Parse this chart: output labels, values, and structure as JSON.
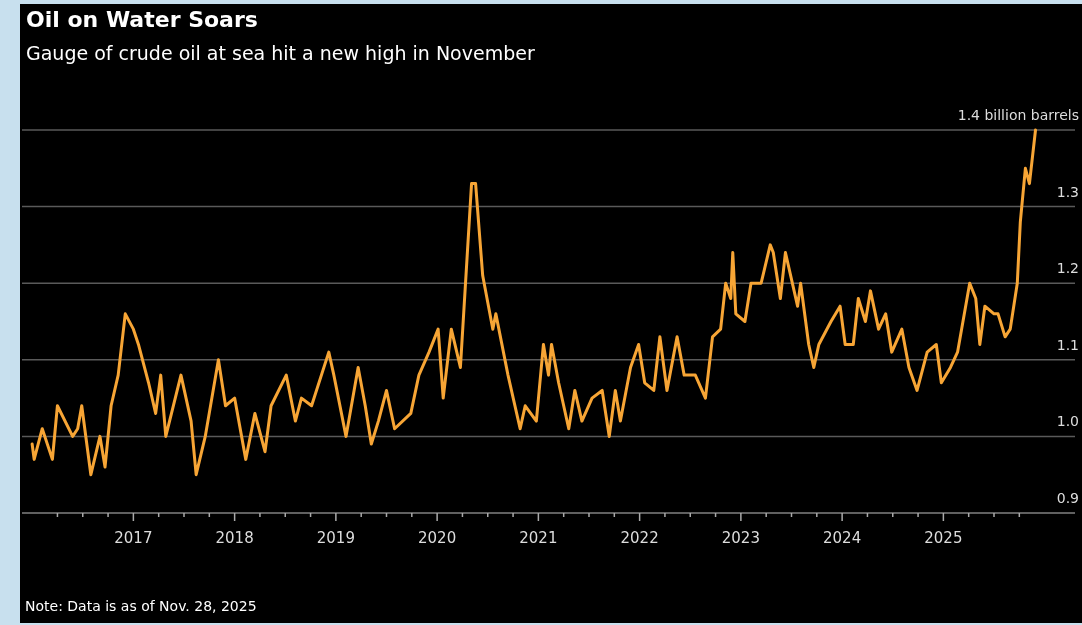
{
  "chart_data": {
    "type": "line",
    "title": "Oil on Water Soars",
    "subtitle": "Gauge of crude oil at sea hit a new high in November",
    "annotations": [
      "Note: Data is as of Nov. 28, 2025"
    ],
    "x": [
      2016.0,
      2016.02,
      2016.1,
      2016.2,
      2016.25,
      2016.4,
      2016.45,
      2016.49,
      2016.58,
      2016.67,
      2016.72,
      2016.78,
      2016.85,
      2016.92,
      2017.0,
      2017.05,
      2017.15,
      2017.22,
      2017.27,
      2017.32,
      2017.47,
      2017.57,
      2017.62,
      2017.71,
      2017.84,
      2017.91,
      2018.0,
      2018.11,
      2018.2,
      2018.3,
      2018.36,
      2018.51,
      2018.6,
      2018.66,
      2018.76,
      2018.93,
      2018.98,
      2019.1,
      2019.22,
      2019.29,
      2019.35,
      2019.42,
      2019.5,
      2019.58,
      2019.74,
      2019.82,
      2019.92,
      2020.01,
      2020.06,
      2020.14,
      2020.23,
      2020.34,
      2020.38,
      2020.45,
      2020.55,
      2020.58,
      2020.7,
      2020.82,
      2020.87,
      2020.98,
      2021.05,
      2021.1,
      2021.13,
      2021.2,
      2021.3,
      2021.36,
      2021.43,
      2021.53,
      2021.63,
      2021.7,
      2021.76,
      2021.81,
      2021.91,
      2021.99,
      2022.05,
      2022.14,
      2022.2,
      2022.27,
      2022.37,
      2022.44,
      2022.55,
      2022.65,
      2022.72,
      2022.8,
      2022.85,
      2022.9,
      2022.92,
      2022.95,
      2023.04,
      2023.1,
      2023.2,
      2023.29,
      2023.32,
      2023.39,
      2023.44,
      2023.56,
      2023.59,
      2023.67,
      2023.72,
      2023.77,
      2023.89,
      2023.98,
      2024.03,
      2024.11,
      2024.16,
      2024.23,
      2024.28,
      2024.36,
      2024.43,
      2024.49,
      2024.59,
      2024.66,
      2024.74,
      2024.84,
      2024.93,
      2024.98,
      2025.07,
      2025.14,
      2025.26,
      2025.32,
      2025.36,
      2025.41,
      2025.5,
      2025.54,
      2025.61,
      2025.66,
      2025.73,
      2025.76,
      2025.81,
      2025.85,
      2025.91
    ],
    "series": [
      {
        "color": "#f7a535",
        "values": [
          0.99,
          0.97,
          1.01,
          0.97,
          1.04,
          1.0,
          1.01,
          1.04,
          0.95,
          1.0,
          0.96,
          1.04,
          1.08,
          1.16,
          1.14,
          1.12,
          1.07,
          1.03,
          1.08,
          1.0,
          1.08,
          1.02,
          0.95,
          1.0,
          1.1,
          1.04,
          1.05,
          0.97,
          1.03,
          0.98,
          1.04,
          1.08,
          1.02,
          1.05,
          1.04,
          1.11,
          1.08,
          1.0,
          1.09,
          1.04,
          0.99,
          1.02,
          1.06,
          1.01,
          1.03,
          1.08,
          1.11,
          1.14,
          1.05,
          1.14,
          1.09,
          1.33,
          1.33,
          1.21,
          1.14,
          1.16,
          1.08,
          1.01,
          1.04,
          1.02,
          1.12,
          1.08,
          1.12,
          1.07,
          1.01,
          1.06,
          1.02,
          1.05,
          1.06,
          1.0,
          1.06,
          1.02,
          1.09,
          1.12,
          1.07,
          1.06,
          1.13,
          1.06,
          1.13,
          1.08,
          1.08,
          1.05,
          1.13,
          1.14,
          1.2,
          1.18,
          1.24,
          1.16,
          1.15,
          1.2,
          1.2,
          1.25,
          1.24,
          1.18,
          1.24,
          1.17,
          1.2,
          1.12,
          1.09,
          1.12,
          1.15,
          1.17,
          1.12,
          1.12,
          1.18,
          1.15,
          1.19,
          1.14,
          1.16,
          1.11,
          1.14,
          1.09,
          1.06,
          1.11,
          1.12,
          1.07,
          1.09,
          1.11,
          1.2,
          1.18,
          1.12,
          1.17,
          1.16,
          1.16,
          1.13,
          1.14,
          1.2,
          1.28,
          1.35,
          1.33,
          1.4
        ]
      }
    ],
    "xlim": [
      2015.9,
      2026.3
    ],
    "xticks": [
      {
        "value": 2016.25,
        "label": null
      },
      {
        "value": 2016.5,
        "label": null
      },
      {
        "value": 2016.75,
        "label": null
      },
      2017,
      {
        "value": 2017.25,
        "label": null
      },
      {
        "value": 2017.5,
        "label": null
      },
      {
        "value": 2017.75,
        "label": null
      },
      2018,
      {
        "value": 2018.25,
        "label": null
      },
      {
        "value": 2018.5,
        "label": null
      },
      {
        "value": 2018.75,
        "label": null
      },
      2019,
      {
        "value": 2019.25,
        "label": null
      },
      {
        "value": 2019.5,
        "label": null
      },
      {
        "value": 2019.75,
        "label": null
      },
      2020,
      {
        "value": 2020.25,
        "label": null
      },
      {
        "value": 2020.5,
        "label": null
      },
      {
        "value": 2020.75,
        "label": null
      },
      2021,
      {
        "value": 2021.25,
        "label": null
      },
      {
        "value": 2021.5,
        "label": null
      },
      {
        "value": 2021.75,
        "label": null
      },
      2022,
      {
        "value": 2022.25,
        "label": null
      },
      {
        "value": 2022.5,
        "label": null
      },
      {
        "value": 2022.75,
        "label": null
      },
      2023,
      {
        "value": 2023.25,
        "label": null
      },
      {
        "value": 2023.5,
        "label": null
      },
      {
        "value": 2023.75,
        "label": null
      },
      2024,
      {
        "value": 2024.25,
        "label": null
      },
      {
        "value": 2024.5,
        "label": null
      },
      {
        "value": 2024.75,
        "label": null
      },
      2025,
      {
        "value": 2025.25,
        "label": null
      },
      {
        "value": 2025.5,
        "label": null
      },
      {
        "value": 2025.75,
        "label": null
      }
    ],
    "ylim": [
      0.9,
      1.4
    ],
    "yticks": [
      0.9,
      {
        "value": 1,
        "label": "1.0"
      },
      1.1,
      1.2,
      1.3,
      {
        "value": 1.4,
        "label": "1.4 billion barrels"
      }
    ],
    "grid": "y",
    "marker": "none",
    "line_style": "solid"
  }
}
